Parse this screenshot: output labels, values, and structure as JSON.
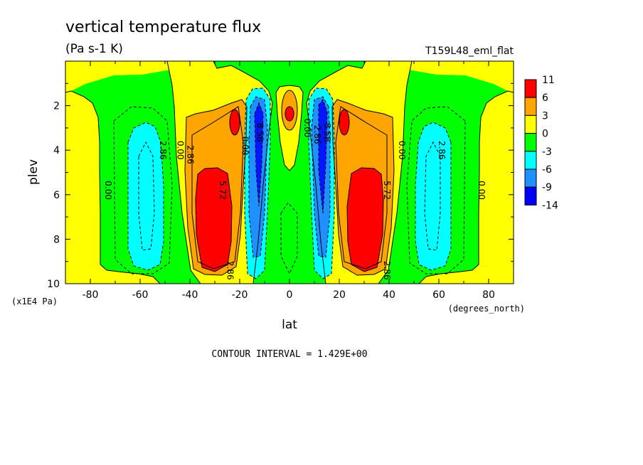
{
  "title": "vertical temperature flux",
  "units": "(Pa s-1 K)",
  "run_label": "T159L48_eml_flat",
  "x_axis_label": "lat",
  "y_axis_label": "plev",
  "x_units_label": "(degrees_north)",
  "y_units_label": "(x1E4 Pa)",
  "contour_interval_text": "CONTOUR INTERVAL = 1.429E+00",
  "colors": {
    "red": "#ff0000",
    "orange": "#ffa500",
    "yellow": "#ffff00",
    "green": "#00ff00",
    "cyan": "#00ffff",
    "midblue": "#1e90ff",
    "blue": "#0000ff"
  },
  "chart_data": {
    "type": "heatmap",
    "x": [
      -90,
      90
    ],
    "y_range": [
      0,
      10
    ],
    "xlim": [
      -90,
      90
    ],
    "ylim": [
      10,
      0
    ],
    "x_ticks": [
      "-80",
      "-60",
      "-40",
      "-20",
      "0",
      "20",
      "40",
      "60",
      "80"
    ],
    "x_tick_values": [
      -80,
      -60,
      -40,
      -20,
      0,
      20,
      40,
      60,
      80
    ],
    "y_ticks": [
      "2",
      "4",
      "6",
      "8",
      "10"
    ],
    "y_tick_values": [
      2,
      4,
      6,
      8,
      10
    ],
    "colorbar": {
      "labels": [
        "11",
        "6",
        "3",
        "0",
        "-3",
        "-6",
        "-9",
        "-14"
      ],
      "colors": [
        "#ff0000",
        "#ffa500",
        "#ffff00",
        "#00ff00",
        "#00ffff",
        "#1e90ff",
        "#0000ff"
      ]
    },
    "contour_labels": [
      {
        "text": "0.00",
        "lat": -74,
        "plev": 5.8
      },
      {
        "text": "2.86",
        "lat": -52,
        "plev": 4.0
      },
      {
        "text": "0.00",
        "lat": -45,
        "plev": 4.0
      },
      {
        "text": "2.86",
        "lat": -41,
        "plev": 4.2
      },
      {
        "text": "5.72",
        "lat": -28,
        "plev": 5.8
      },
      {
        "text": "2.86",
        "lat": -25,
        "plev": 9.4
      },
      {
        "text": "0.00",
        "lat": -19,
        "plev": 3.8
      },
      {
        "text": "8.58",
        "lat": -13,
        "plev": 3.2
      },
      {
        "text": "0.00",
        "lat": 6,
        "plev": 3.0
      },
      {
        "text": "2.86",
        "lat": 10,
        "plev": 3.3
      },
      {
        "text": "8.58",
        "lat": 14,
        "plev": 3.2
      },
      {
        "text": "0.00",
        "lat": 44,
        "plev": 4.0
      },
      {
        "text": "5.72",
        "lat": 38,
        "plev": 5.8
      },
      {
        "text": "2.86",
        "lat": 38,
        "plev": 9.4
      },
      {
        "text": "2.86",
        "lat": 60,
        "plev": 4.0
      },
      {
        "text": "0.00",
        "lat": 76,
        "plev": 5.8
      }
    ]
  }
}
